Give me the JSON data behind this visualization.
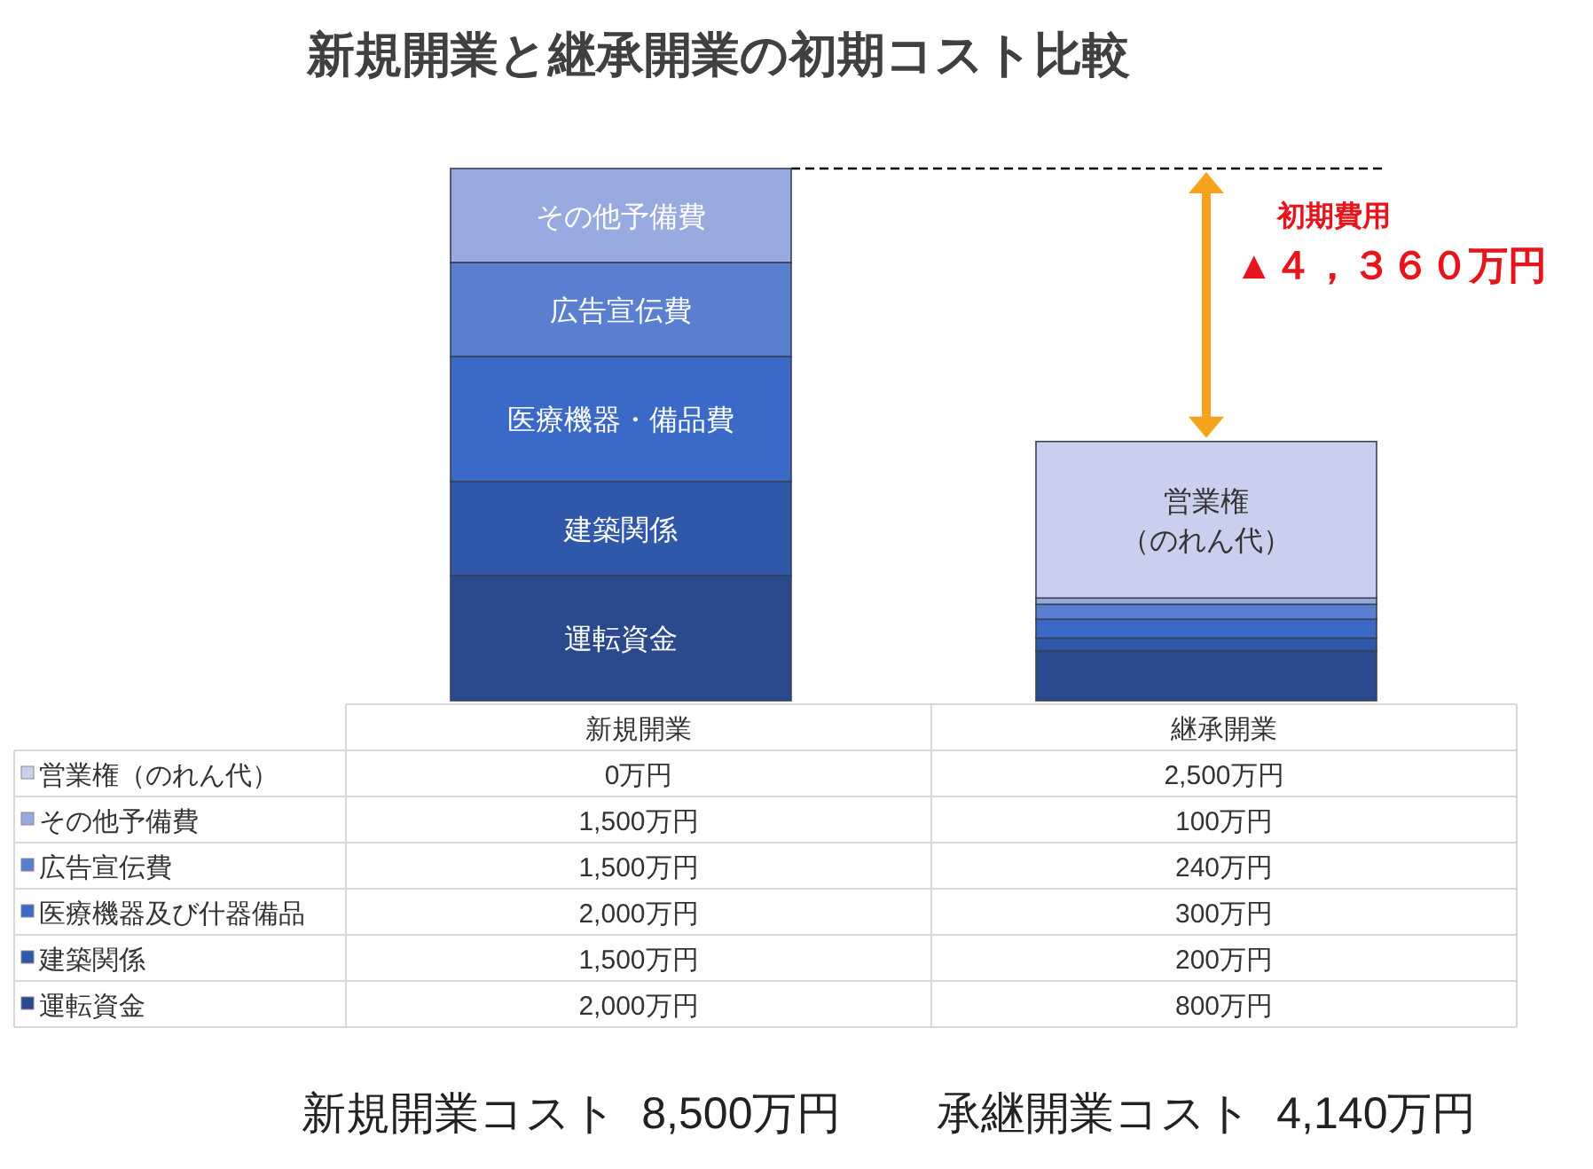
{
  "chart_data": {
    "type": "bar",
    "stacked": true,
    "title": "新規開業と継承開業の初期コスト比較",
    "categories": [
      "新規開業",
      "継承開業"
    ],
    "series": [
      {
        "name": "運転資金",
        "color": "#2b4a8e",
        "values": [
          2000,
          800
        ],
        "value_labels": [
          "2,000万円",
          "800万円"
        ]
      },
      {
        "name": "建築関係",
        "color": "#2f58aa",
        "values": [
          1500,
          200
        ],
        "value_labels": [
          "1,500万円",
          "200万円"
        ]
      },
      {
        "name": "医療機器及び什器備品",
        "color": "#3a69c8",
        "values": [
          2000,
          300
        ],
        "value_labels": [
          "2,000万円",
          "300万円"
        ]
      },
      {
        "name": "広告宣伝費",
        "color": "#5a7ed0",
        "values": [
          1500,
          240
        ],
        "value_labels": [
          "1,500万円",
          "240万円"
        ]
      },
      {
        "name": "その他予備費",
        "color": "#98aadf",
        "values": [
          1500,
          100
        ],
        "value_labels": [
          "1,500万円",
          "100万円"
        ]
      },
      {
        "name": "営業権（のれん代）",
        "color": "#c8d0ee",
        "values": [
          0,
          2500
        ],
        "value_labels": [
          "0万円",
          "2,500万円"
        ]
      }
    ],
    "annotations": [
      "運転資金",
      "建築関係",
      "医療機器・備品費",
      "広告宣伝費",
      "その他予備費",
      "営業権（のれん代）",
      "初期費用",
      "▲４，３６０万円",
      "新規開業コスト  8,500万円",
      "承継開業コスト  4,140万円"
    ],
    "ref_lines": [
      {
        "axis": "y",
        "value": 8500,
        "color": "#000000",
        "line_style": "dashed"
      }
    ],
    "legend": "bottom",
    "tick_labels": "x"
  }
}
